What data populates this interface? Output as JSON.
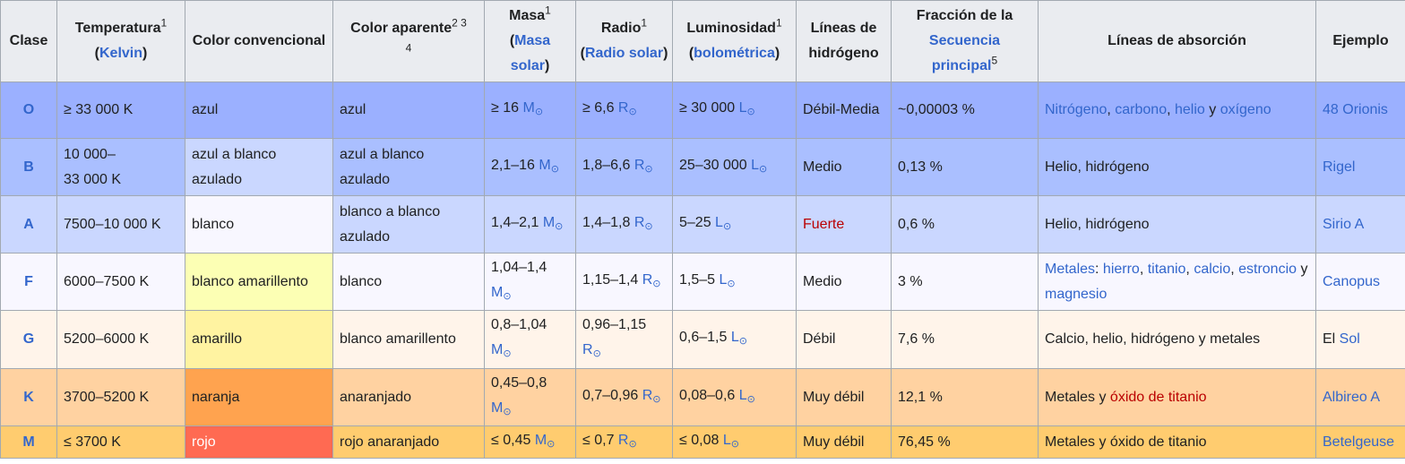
{
  "headers": {
    "clase": "Clase",
    "temp": {
      "label": "Temperatura",
      "sup": "1",
      "link": "Kelvin"
    },
    "color_conv": "Color convencional",
    "color_apar": {
      "label": "Color aparente",
      "sups": [
        "2",
        "3",
        "4"
      ]
    },
    "masa": {
      "label": "Masa",
      "sup": "1",
      "link": "Masa solar"
    },
    "radio": {
      "label": "Radio",
      "sup": "1",
      "link": "Radio solar"
    },
    "lum": {
      "label": "Luminosidad",
      "sup": "1",
      "link": "bolométrica"
    },
    "lineas_h": "Líneas de hidrógeno",
    "fraccion": {
      "label": "Fracción de la",
      "link": "Secuencia principal",
      "sup": "5"
    },
    "absorcion": "Líneas de absorción",
    "ejemplo": "Ejemplo"
  },
  "units": {
    "mass": "M",
    "radius": "R",
    "lum": "L",
    "sun_symbol": "⊙"
  },
  "rows": [
    {
      "clase": "O",
      "temp": [
        "≥ 33 000 K"
      ],
      "color_conv": "azul",
      "color_apar": "azul",
      "masa": [
        "≥ 16"
      ],
      "radio": [
        "≥ 6,6"
      ],
      "lum": "≥ 30 000",
      "lineas_h": "Débil-Media",
      "fraccion": "~0,00003 %",
      "absorcion": [
        [
          "Nitrógeno",
          "link"
        ],
        [
          ", ",
          "text"
        ],
        [
          "carbono",
          "link"
        ],
        [
          ", ",
          "text"
        ],
        [
          "helio",
          "link"
        ],
        [
          " y ",
          "text"
        ],
        [
          "oxígeno",
          "link"
        ]
      ],
      "ejemplo": [
        [
          "48 Orionis",
          "link"
        ]
      ],
      "row_bg": "#9bb0ff",
      "conv_bg": "#9bb0ff"
    },
    {
      "clase": "B",
      "temp": [
        "10 000–",
        "33 000 K"
      ],
      "color_conv": "azul a blanco azulado",
      "color_apar": "azul a blanco azulado",
      "masa": [
        "2,1–16"
      ],
      "radio": [
        "1,8–6,6"
      ],
      "lum": "25–30 000",
      "lineas_h": "Medio",
      "fraccion": "0,13 %",
      "absorcion": [
        [
          "Helio, hidrógeno",
          "text"
        ]
      ],
      "ejemplo": [
        [
          "Rigel",
          "link"
        ]
      ],
      "row_bg": "#aabfff",
      "conv_bg": "#cad7ff"
    },
    {
      "clase": "A",
      "temp": [
        "7500–10 000 K"
      ],
      "color_conv": "blanco",
      "color_apar": "blanco a blanco azulado",
      "masa": [
        "1,4–2,1"
      ],
      "radio": [
        "1,4–1,8"
      ],
      "lum": "5–25",
      "lineas_h": "Fuerte",
      "fraccion": "0,6 %",
      "absorcion": [
        [
          "Helio, hidrógeno",
          "text"
        ]
      ],
      "ejemplo": [
        [
          "Sirio A",
          "link"
        ]
      ],
      "row_bg": "#cad7ff",
      "conv_bg": "#f8f7ff"
    },
    {
      "clase": "F",
      "temp": [
        "6000–7500 K"
      ],
      "color_conv": "blanco amarillento",
      "color_apar": "blanco",
      "masa": [
        "1,04–1,4"
      ],
      "radio": [
        "1,15–1,4"
      ],
      "lum": "1,5–5",
      "lineas_h": "Medio",
      "fraccion": "3 %",
      "absorcion": [
        [
          "Metales",
          "link"
        ],
        [
          ": ",
          "text"
        ],
        [
          "hierro",
          "link"
        ],
        [
          ", ",
          "text"
        ],
        [
          "titanio",
          "link"
        ],
        [
          ", ",
          "text"
        ],
        [
          "calcio",
          "link"
        ],
        [
          ", ",
          "text"
        ],
        [
          "estroncio",
          "link"
        ],
        [
          " y ",
          "text"
        ],
        [
          "magnesio",
          "link"
        ]
      ],
      "ejemplo": [
        [
          "Canopus",
          "link"
        ]
      ],
      "row_bg": "#f8f7ff",
      "conv_bg": "#fcffb4"
    },
    {
      "clase": "G",
      "temp": [
        "5200–6000 K"
      ],
      "color_conv": "amarillo",
      "color_apar": "blanco amarillento",
      "masa": [
        "0,8–1,04"
      ],
      "radio": [
        "0,96–1,15"
      ],
      "lum": "0,6–1,5",
      "lineas_h": "Débil",
      "fraccion": "7,6 %",
      "absorcion": [
        [
          "Calcio, helio, hidrógeno y metales",
          "text"
        ]
      ],
      "ejemplo": [
        [
          "El ",
          "text"
        ],
        [
          "Sol",
          "link"
        ]
      ],
      "row_bg": "#fff4ea",
      "conv_bg": "#fff3a1"
    },
    {
      "clase": "K",
      "temp": [
        "3700–5200 K"
      ],
      "color_conv": "naranja",
      "color_apar": "anaranjado",
      "masa": [
        "0,45–0,8"
      ],
      "radio": [
        "0,7–0,96"
      ],
      "lum": "0,08–0,6",
      "lineas_h": "Muy débil",
      "fraccion": "12,1 %",
      "absorcion": [
        [
          "Metales y ",
          "text"
        ],
        [
          "óxido de titanio",
          "red"
        ]
      ],
      "ejemplo": [
        [
          "Albireo A",
          "link"
        ]
      ],
      "row_bg": "#ffd2a1",
      "conv_bg": "#ffa34f"
    },
    {
      "clase": "M",
      "temp": [
        "≤ 3700 K"
      ],
      "color_conv": "rojo",
      "color_apar": "rojo anaranjado",
      "masa": [
        "≤ 0,45"
      ],
      "radio": [
        "≤ 0,7"
      ],
      "lum": "≤ 0,08",
      "lineas_h": "Muy débil",
      "fraccion": "76,45 %",
      "absorcion": [
        [
          "Metales y óxido de titanio",
          "text"
        ]
      ],
      "ejemplo": [
        [
          "Betelgeuse",
          "link"
        ]
      ],
      "row_bg": "#ffcc6f",
      "conv_bg": "#ff6a52"
    }
  ]
}
